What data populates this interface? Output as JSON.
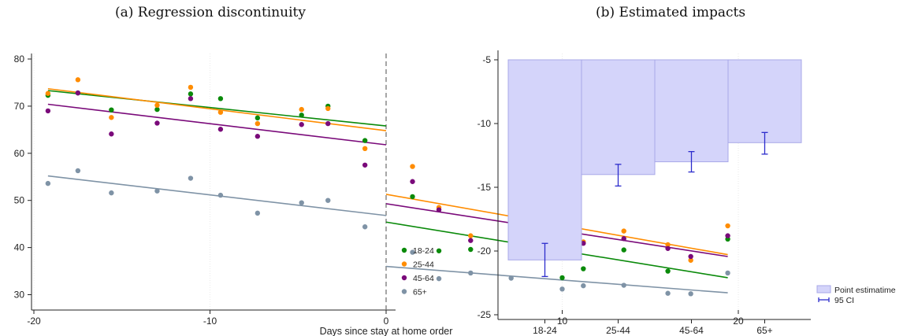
{
  "panels": {
    "a_title": "(a) Regression discontinuity",
    "b_title": "(b) Estimated impacts"
  },
  "chart_data": [
    {
      "type": "scatter",
      "title": "(a) Regression discontinuity",
      "xlabel": "Days since stay at home order",
      "ylabel": "",
      "xlim": [
        -21,
        21
      ],
      "ylim": [
        28,
        82
      ],
      "xticks": [
        -20,
        -10,
        0,
        10,
        20
      ],
      "yticks": [
        30,
        40,
        50,
        60,
        70,
        80
      ],
      "cutoff": 0,
      "legend_position": "right",
      "series": [
        {
          "name": "18-24",
          "color": "#0a8a0a",
          "x": [
            -19.2,
            -17.5,
            -15.6,
            -13.0,
            -11.1,
            -9.4,
            -7.3,
            -4.8,
            -3.3,
            -1.2,
            1.5,
            3.0,
            4.8,
            7.1,
            10.0,
            11.2,
            13.5,
            16.0,
            19.4
          ],
          "y": [
            72.3,
            72.8,
            69.2,
            69.3,
            72.6,
            71.6,
            67.5,
            68.1,
            70.0,
            62.7,
            50.8,
            39.3,
            39.6,
            44.2,
            33.6,
            35.5,
            39.5,
            35.0,
            41.8
          ],
          "fit_pre": [
            [
              -19.2,
              73.3
            ],
            [
              0,
              65.8
            ]
          ],
          "fit_post": [
            [
              0,
              45.4
            ],
            [
              19.4,
              33.6
            ]
          ]
        },
        {
          "name": "25-44",
          "color": "#ff8c00",
          "x": [
            -19.2,
            -17.5,
            -15.6,
            -13.0,
            -11.1,
            -9.4,
            -7.3,
            -4.8,
            -3.3,
            -1.2,
            1.5,
            3.0,
            4.8,
            7.1,
            10.0,
            11.2,
            13.5,
            16.0,
            17.3,
            19.4
          ],
          "y": [
            72.7,
            75.6,
            67.6,
            70.2,
            74.0,
            68.7,
            66.3,
            69.3,
            69.5,
            61.0,
            57.2,
            48.5,
            42.5,
            47.5,
            42.3,
            41.2,
            43.5,
            40.6,
            37.3,
            44.6
          ],
          "fit_pre": [
            [
              -19.2,
              73.7
            ],
            [
              0,
              64.8
            ]
          ],
          "fit_post": [
            [
              0,
              51.3
            ],
            [
              19.4,
              38.5
            ]
          ]
        },
        {
          "name": "45-64",
          "color": "#7a0a7a",
          "x": [
            -19.2,
            -17.5,
            -15.6,
            -13.0,
            -11.1,
            -9.4,
            -7.3,
            -4.8,
            -3.3,
            -1.2,
            1.5,
            3.0,
            4.8,
            7.1,
            10.0,
            11.2,
            13.5,
            16.0,
            17.3,
            19.4
          ],
          "y": [
            69.0,
            72.8,
            64.1,
            66.4,
            71.6,
            65.1,
            63.6,
            66.1,
            66.3,
            57.5,
            54.0,
            48.0,
            41.5,
            44.5,
            42.1,
            40.9,
            41.9,
            39.8,
            38.1,
            42.5
          ],
          "fit_pre": [
            [
              -19.2,
              70.4
            ],
            [
              0,
              61.8
            ]
          ],
          "fit_post": [
            [
              0,
              49.3
            ],
            [
              19.4,
              38.1
            ]
          ]
        },
        {
          "name": "65+",
          "color": "#7f93a6",
          "x": [
            -19.2,
            -17.5,
            -15.6,
            -13.0,
            -11.1,
            -9.4,
            -7.3,
            -4.8,
            -3.3,
            -1.2,
            1.5,
            3.0,
            4.8,
            7.1,
            10.0,
            11.2,
            13.5,
            16.0,
            17.3,
            19.4
          ],
          "y": [
            53.6,
            56.3,
            51.6,
            52.0,
            54.7,
            51.1,
            47.3,
            49.5,
            50.0,
            44.4,
            39.0,
            33.4,
            34.6,
            33.5,
            31.2,
            31.9,
            32.0,
            30.3,
            30.2,
            34.6
          ],
          "fit_pre": [
            [
              -19.2,
              55.2
            ],
            [
              0,
              46.8
            ]
          ],
          "fit_post": [
            [
              0,
              36.0
            ],
            [
              19.4,
              30.4
            ]
          ]
        }
      ]
    },
    {
      "type": "bar",
      "title": "(b) Estimated impacts",
      "xlabel": "",
      "ylabel": "",
      "categories": [
        "18-24",
        "25-44",
        "45-64",
        "65+"
      ],
      "baseline": -5,
      "ylim": [
        -25.3,
        -4.3
      ],
      "yticks": [
        -5,
        -10,
        -15,
        -20,
        -25
      ],
      "bar_color": "#d4d4fa",
      "bar_edge": "#a8a8e8",
      "ci_color": "#2c2ccc",
      "legend_position": "right",
      "series": [
        {
          "name": "Point estimatime",
          "values": [
            -20.7,
            -14.0,
            -13.0,
            -11.5
          ]
        },
        {
          "name": "95 CI",
          "lower": [
            -22.0,
            -14.9,
            -13.8,
            -12.4
          ],
          "upper": [
            -19.4,
            -13.2,
            -12.2,
            -10.7
          ]
        }
      ]
    }
  ]
}
